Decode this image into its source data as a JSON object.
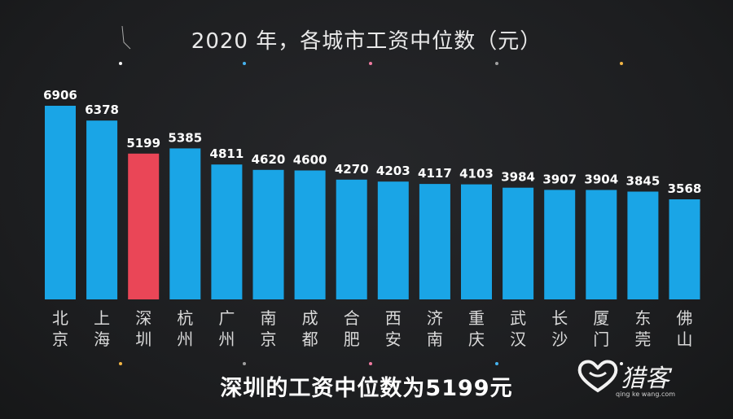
{
  "chart_data": {
    "type": "bar",
    "title": "2020 年，各城市工资中位数（元）",
    "categories": [
      "北京",
      "上海",
      "深圳",
      "杭州",
      "广州",
      "南京",
      "成都",
      "合肥",
      "西安",
      "济南",
      "重庆",
      "武汉",
      "长沙",
      "厦门",
      "东莞",
      "佛山"
    ],
    "values": [
      6906,
      6378,
      5199,
      5385,
      4811,
      4620,
      4600,
      4270,
      4203,
      4117,
      4103,
      3984,
      3907,
      3904,
      3845,
      3568
    ],
    "highlight_category": "深圳",
    "colors": {
      "bar": "#1aa5e6",
      "highlight": "#ea4657",
      "background": "#1e1f21",
      "text": "#ffffff"
    },
    "ylim": [
      0,
      7000
    ],
    "grid": false,
    "legend": "none"
  },
  "caption": "深圳的工资中位数为5199元",
  "watermark": {
    "logo_text": "猎客",
    "sub_text": "qing ke wang.com"
  }
}
